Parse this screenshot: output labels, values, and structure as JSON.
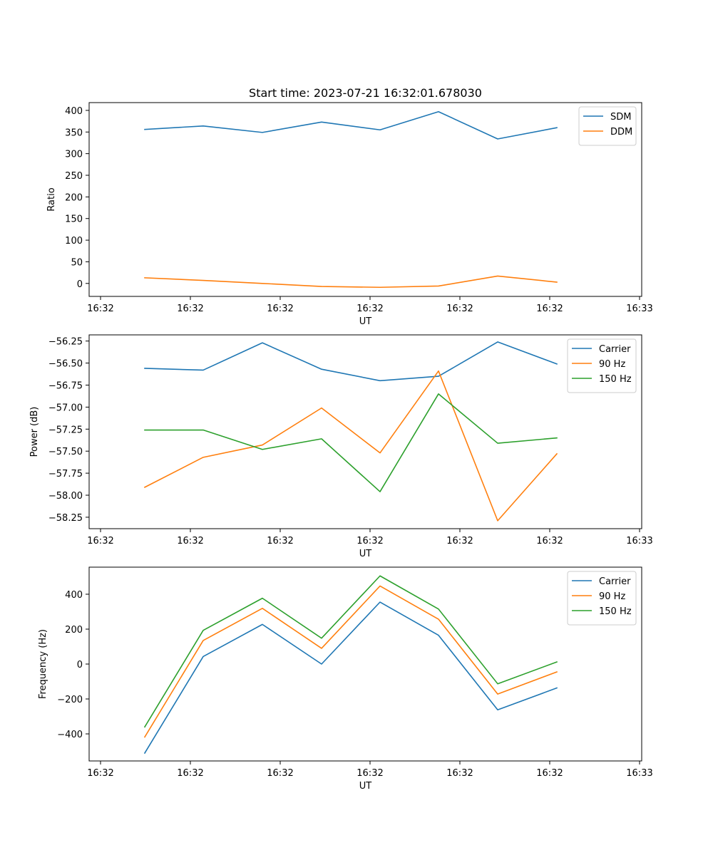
{
  "chart_data": [
    {
      "type": "line",
      "title": "Start time: 2023-07-21 16:32:01.678030",
      "xlabel": "UT",
      "ylabel": "Ratio",
      "x_tick_labels": [
        "16:32",
        "16:32",
        "16:32",
        "16:32",
        "16:32",
        "16:32",
        "16:33"
      ],
      "ylim": [
        -30,
        418
      ],
      "yticks": [
        0,
        50,
        100,
        150,
        200,
        250,
        300,
        350,
        400
      ],
      "ytick_labels": [
        "0",
        "50",
        "100",
        "150",
        "200",
        "250",
        "300",
        "350",
        "400"
      ],
      "legend": "top-right",
      "series": [
        {
          "name": "SDM",
          "color": "#1f77b4",
          "values": [
            356,
            364,
            349,
            373,
            355,
            397,
            334,
            360
          ]
        },
        {
          "name": "DDM",
          "color": "#ff7f0e",
          "values": [
            13,
            7,
            0,
            -7,
            -9,
            -6,
            17,
            3
          ]
        }
      ]
    },
    {
      "type": "line",
      "title": "",
      "xlabel": "UT",
      "ylabel": "Power (dB)",
      "x_tick_labels": [
        "16:32",
        "16:32",
        "16:32",
        "16:32",
        "16:32",
        "16:32",
        "16:33"
      ],
      "ylim": [
        -58.38,
        -56.18
      ],
      "yticks": [
        -58.25,
        -58.0,
        -57.75,
        -57.5,
        -57.25,
        -57.0,
        -56.75,
        -56.5,
        -56.25
      ],
      "ytick_labels": [
        "−58.25",
        "−58.00",
        "−57.75",
        "−57.50",
        "−57.25",
        "−57.00",
        "−56.75",
        "−56.50",
        "−56.25"
      ],
      "legend": "top-right",
      "series": [
        {
          "name": "Carrier",
          "color": "#1f77b4",
          "values": [
            -56.56,
            -56.58,
            -56.27,
            -56.57,
            -56.7,
            -56.65,
            -56.26,
            -56.51
          ]
        },
        {
          "name": "90 Hz",
          "color": "#ff7f0e",
          "values": [
            -57.91,
            -57.57,
            -57.43,
            -57.01,
            -57.52,
            -56.59,
            -58.29,
            -57.53
          ]
        },
        {
          "name": "150 Hz",
          "color": "#2ca02c",
          "values": [
            -57.26,
            -57.26,
            -57.48,
            -57.36,
            -57.96,
            -56.85,
            -57.41,
            -57.35
          ]
        }
      ]
    },
    {
      "type": "line",
      "title": "",
      "xlabel": "UT",
      "ylabel": "Frequency (Hz)",
      "x_tick_labels": [
        "16:32",
        "16:32",
        "16:32",
        "16:32",
        "16:32",
        "16:32",
        "16:33"
      ],
      "ylim": [
        -555,
        555
      ],
      "yticks": [
        -400,
        -200,
        0,
        200,
        400
      ],
      "ytick_labels": [
        "−400",
        "−200",
        "0",
        "200",
        "400"
      ],
      "legend": "top-right",
      "series": [
        {
          "name": "Carrier",
          "color": "#1f77b4",
          "values": [
            -510,
            43,
            227,
            0,
            355,
            165,
            -262,
            -137
          ]
        },
        {
          "name": "90 Hz",
          "color": "#ff7f0e",
          "values": [
            -418,
            135,
            319,
            90,
            447,
            257,
            -172,
            -45
          ]
        },
        {
          "name": "150 Hz",
          "color": "#2ca02c",
          "values": [
            -360,
            193,
            377,
            148,
            505,
            315,
            -113,
            12
          ]
        }
      ]
    }
  ]
}
